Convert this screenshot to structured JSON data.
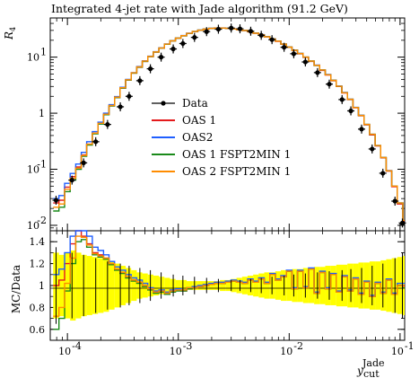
{
  "chart_data": {
    "type": "line",
    "title": "Integrated 4-jet rate with Jade algorithm (91.2 GeV)",
    "ylabel": "R_4",
    "xlabel": "y_cut^Jade",
    "xscale": "log",
    "yscale": "log",
    "xlim": [
      7e-05,
      0.11
    ],
    "ylim": [
      0.008,
      50
    ],
    "x_ticks": [
      {
        "value": 0.0001,
        "base": "10",
        "exp": "-4"
      },
      {
        "value": 0.001,
        "base": "10",
        "exp": "-3"
      },
      {
        "value": 0.01,
        "base": "10",
        "exp": "-2"
      },
      {
        "value": 0.1,
        "base": "10",
        "exp": "-1"
      }
    ],
    "y_ticks": [
      {
        "value": 0.01,
        "base": "10",
        "exp": "-2"
      },
      {
        "value": 0.1,
        "base": "10",
        "exp": "-1"
      },
      {
        "value": 1,
        "base": "1",
        "exp": ""
      },
      {
        "value": 10,
        "base": "10",
        "exp": "1"
      }
    ],
    "ratio": {
      "ylabel": "MC/Data",
      "ylim": [
        0.5,
        1.5
      ],
      "ticks": [
        "0.6",
        "0.8",
        "1",
        "1.2",
        "1.4"
      ]
    },
    "legend": {
      "position": "center-left"
    },
    "x": [
      7.9e-05,
      8.9e-05,
      0.0001,
      0.000112,
      0.000126,
      0.000141,
      0.000158,
      0.000178,
      0.0002,
      0.000224,
      0.000251,
      0.000282,
      0.000316,
      0.000355,
      0.000398,
      0.000447,
      0.000501,
      0.000562,
      0.000631,
      0.000708,
      0.000794,
      0.000891,
      0.001,
      0.001122,
      0.001259,
      0.001413,
      0.001585,
      0.001778,
      0.001995,
      0.002239,
      0.002512,
      0.002818,
      0.003162,
      0.003548,
      0.003981,
      0.004467,
      0.005012,
      0.005623,
      0.00631,
      0.007079,
      0.007943,
      0.008913,
      0.01,
      0.01122,
      0.01259,
      0.01413,
      0.01585,
      0.01778,
      0.01995,
      0.02239,
      0.02512,
      0.02818,
      0.03162,
      0.03548,
      0.03981,
      0.04467,
      0.05012,
      0.05623,
      0.0631,
      0.07079,
      0.07943,
      0.08913,
      0.1,
      0.1122
    ],
    "data": {
      "name": "Data",
      "x": [
        7.9e-05,
        0.00011,
        0.00014,
        0.00018,
        0.00023,
        0.0003,
        0.00036,
        0.00045,
        0.00056,
        0.0007,
        0.0009,
        0.0011,
        0.0014,
        0.0018,
        0.0023,
        0.003,
        0.0036,
        0.0045,
        0.0056,
        0.007,
        0.009,
        0.011,
        0.014,
        0.018,
        0.023,
        0.03,
        0.036,
        0.045,
        0.056,
        0.07,
        0.09,
        0.105
      ],
      "y": [
        0.028,
        0.064,
        0.13,
        0.31,
        0.63,
        1.3,
        2.0,
        3.8,
        6.2,
        10.0,
        14.0,
        17.5,
        22.5,
        28.5,
        31.5,
        33.0,
        32.0,
        29.0,
        24.5,
        20.5,
        15.0,
        11.5,
        8.2,
        5.3,
        3.3,
        1.75,
        1.1,
        0.52,
        0.23,
        0.085,
        0.027,
        0.011
      ]
    },
    "series": [
      {
        "name": "OAS 1",
        "color": "#e41a1c",
        "y": [
          0.025,
          0.028,
          0.048,
          0.074,
          0.11,
          0.18,
          0.28,
          0.44,
          0.65,
          0.95,
          1.35,
          1.9,
          2.8,
          3.9,
          5.2,
          6.6,
          8.4,
          10.2,
          12.3,
          14.5,
          17.0,
          19.5,
          21.8,
          24.0,
          26.5,
          28.5,
          30.2,
          31.5,
          32.5,
          33.0,
          33.0,
          32.5,
          31.8,
          31.0,
          29.8,
          28.3,
          26.7,
          25.0,
          23.0,
          21.0,
          19.2,
          17.0,
          15.0,
          13.2,
          11.5,
          9.9,
          8.4,
          7.1,
          5.8,
          4.8,
          3.8,
          3.0,
          2.3,
          1.75,
          1.25,
          0.9,
          0.62,
          0.41,
          0.26,
          0.16,
          0.093,
          0.049,
          0.024,
          0.012
        ]
      },
      {
        "name": "OAS2",
        "color": "#1f5fff",
        "y": [
          0.03,
          0.034,
          0.056,
          0.084,
          0.124,
          0.2,
          0.31,
          0.47,
          0.69,
          1.0,
          1.42,
          1.98,
          2.9,
          4.0,
          5.3,
          6.8,
          8.6,
          10.4,
          12.5,
          14.7,
          17.2,
          19.7,
          22.0,
          24.3,
          26.7,
          28.7,
          30.4,
          31.7,
          32.7,
          33.2,
          33.2,
          32.7,
          32.0,
          31.2,
          30.0,
          28.5,
          26.9,
          25.2,
          23.2,
          21.2,
          19.4,
          17.2,
          15.2,
          13.4,
          11.7,
          10.0,
          8.5,
          7.2,
          5.9,
          4.9,
          3.9,
          3.05,
          2.35,
          1.78,
          1.27,
          0.92,
          0.63,
          0.42,
          0.265,
          0.163,
          0.095,
          0.05,
          0.025,
          0.0125
        ]
      },
      {
        "name": "OAS 1 FSPT2MIN 1",
        "color": "#1a8a1a",
        "y": [
          0.018,
          0.021,
          0.04,
          0.064,
          0.1,
          0.17,
          0.27,
          0.43,
          0.64,
          0.94,
          1.34,
          1.9,
          2.8,
          3.9,
          5.2,
          6.6,
          8.4,
          10.2,
          12.3,
          14.5,
          17.0,
          19.5,
          21.8,
          24.0,
          26.5,
          28.6,
          30.3,
          31.6,
          32.6,
          33.1,
          33.1,
          32.6,
          31.9,
          31.1,
          29.9,
          28.4,
          26.8,
          25.1,
          23.1,
          21.1,
          19.3,
          17.1,
          15.1,
          13.3,
          11.6,
          10.0,
          8.5,
          7.1,
          5.9,
          4.85,
          3.85,
          3.02,
          2.32,
          1.77,
          1.26,
          0.91,
          0.63,
          0.42,
          0.265,
          0.162,
          0.094,
          0.05,
          0.025,
          0.0123
        ]
      },
      {
        "name": "OAS 2 FSPT2MIN 1",
        "color": "#ff8c00",
        "y": [
          0.021,
          0.024,
          0.044,
          0.069,
          0.105,
          0.176,
          0.28,
          0.44,
          0.66,
          0.96,
          1.37,
          1.93,
          2.85,
          3.95,
          5.25,
          6.7,
          8.5,
          10.3,
          12.4,
          14.6,
          17.1,
          19.6,
          21.9,
          24.2,
          26.6,
          28.6,
          30.3,
          31.6,
          32.6,
          33.1,
          33.1,
          32.6,
          31.9,
          31.1,
          29.9,
          28.4,
          26.8,
          25.1,
          23.1,
          21.1,
          19.3,
          17.1,
          15.1,
          13.3,
          11.6,
          10.0,
          8.5,
          7.15,
          5.9,
          4.85,
          3.85,
          3.02,
          2.32,
          1.77,
          1.26,
          0.91,
          0.63,
          0.42,
          0.265,
          0.162,
          0.094,
          0.05,
          0.025,
          0.0123
        ]
      }
    ],
    "ratio_series": [
      {
        "name": "OAS 1",
        "color": "#e41a1c",
        "y": [
          1.0,
          1.05,
          1.2,
          1.38,
          1.5,
          1.45,
          1.38,
          1.3,
          1.28,
          1.25,
          1.2,
          1.15,
          1.12,
          1.08,
          1.05,
          1.03,
          1.0,
          0.97,
          0.94,
          0.95,
          0.93,
          0.95,
          0.96,
          0.95,
          0.97,
          0.98,
          0.99,
          1.0,
          1.01,
          1.02,
          1.02,
          1.03,
          1.04,
          1.03,
          1.02,
          1.05,
          1.03,
          1.06,
          1.02,
          1.1,
          1.05,
          1.08,
          1.13,
          0.97,
          1.13,
          0.98,
          1.15,
          0.93,
          1.12,
          0.97,
          1.1,
          0.94,
          1.08,
          0.95,
          1.06,
          0.92,
          1.03,
          0.9,
          1.02,
          0.93,
          1.05,
          0.92,
          1.0,
          1.0
        ]
      },
      {
        "name": "OAS2",
        "color": "#1f5fff",
        "y": [
          1.1,
          1.15,
          1.3,
          1.45,
          1.55,
          1.5,
          1.45,
          1.35,
          1.32,
          1.28,
          1.22,
          1.17,
          1.14,
          1.1,
          1.07,
          1.05,
          1.02,
          0.98,
          0.95,
          0.96,
          0.94,
          0.96,
          0.97,
          0.96,
          0.98,
          0.99,
          1.0,
          1.01,
          1.02,
          1.03,
          1.03,
          1.04,
          1.05,
          1.04,
          1.03,
          1.06,
          1.04,
          1.07,
          1.03,
          1.11,
          1.06,
          1.09,
          1.14,
          0.98,
          1.14,
          0.99,
          1.16,
          0.94,
          1.13,
          0.98,
          1.11,
          0.95,
          1.09,
          0.96,
          1.07,
          0.93,
          1.04,
          0.91,
          1.03,
          0.94,
          1.06,
          0.93,
          1.02,
          1.02
        ]
      },
      {
        "name": "OAS 1 FSPT2MIN 1",
        "color": "#1a8a1a",
        "y": [
          0.6,
          0.7,
          0.95,
          1.2,
          1.4,
          1.42,
          1.35,
          1.28,
          1.26,
          1.24,
          1.19,
          1.14,
          1.11,
          1.07,
          1.04,
          1.02,
          0.99,
          0.96,
          0.93,
          0.94,
          0.92,
          0.94,
          0.95,
          0.95,
          0.97,
          0.98,
          0.99,
          1.0,
          1.01,
          1.02,
          1.02,
          1.03,
          1.04,
          1.03,
          1.02,
          1.05,
          1.03,
          1.06,
          1.02,
          1.1,
          1.05,
          1.08,
          1.13,
          0.97,
          1.13,
          0.98,
          1.15,
          0.93,
          1.12,
          0.97,
          1.1,
          0.94,
          1.08,
          0.95,
          1.06,
          0.92,
          1.03,
          0.9,
          1.02,
          0.93,
          1.05,
          0.92,
          1.0,
          0.98
        ]
      },
      {
        "name": "OAS 2 FSPT2MIN 1",
        "color": "#ff8c00",
        "y": [
          0.72,
          0.8,
          1.02,
          1.25,
          1.45,
          1.44,
          1.37,
          1.29,
          1.27,
          1.25,
          1.2,
          1.15,
          1.12,
          1.08,
          1.05,
          1.03,
          1.0,
          0.97,
          0.94,
          0.95,
          0.93,
          0.95,
          0.96,
          0.96,
          0.98,
          0.98,
          0.99,
          1.0,
          1.01,
          1.02,
          1.02,
          1.03,
          1.04,
          1.03,
          1.02,
          1.05,
          1.03,
          1.06,
          1.02,
          1.1,
          1.05,
          1.08,
          1.13,
          0.97,
          1.13,
          0.98,
          1.15,
          0.93,
          1.12,
          0.97,
          1.1,
          0.94,
          1.08,
          0.95,
          1.06,
          0.92,
          1.03,
          0.9,
          1.02,
          0.93,
          1.05,
          0.92,
          1.0,
          0.99
        ]
      }
    ],
    "ratio_band": [
      0.3,
      0.28,
      0.3,
      0.32,
      0.3,
      0.28,
      0.27,
      0.26,
      0.25,
      0.24,
      0.22,
      0.2,
      0.18,
      0.16,
      0.14,
      0.12,
      0.11,
      0.1,
      0.09,
      0.08,
      0.07,
      0.06,
      0.05,
      0.05,
      0.04,
      0.04,
      0.04,
      0.04,
      0.04,
      0.04,
      0.05,
      0.05,
      0.06,
      0.07,
      0.08,
      0.09,
      0.1,
      0.11,
      0.12,
      0.12,
      0.13,
      0.14,
      0.14,
      0.15,
      0.15,
      0.16,
      0.16,
      0.17,
      0.17,
      0.18,
      0.18,
      0.19,
      0.19,
      0.2,
      0.2,
      0.21,
      0.21,
      0.22,
      0.22,
      0.23,
      0.24,
      0.25,
      0.26,
      0.27
    ],
    "ratio_data_err": [
      0.35,
      0.3,
      0.28,
      0.25,
      0.22,
      0.2,
      0.18,
      0.16,
      0.14,
      0.12,
      0.1,
      0.09,
      0.08,
      0.07,
      0.06,
      0.05,
      0.05,
      0.06,
      0.07,
      0.08,
      0.09,
      0.1,
      0.11,
      0.12,
      0.13,
      0.14,
      0.15,
      0.16,
      0.18,
      0.2,
      0.25,
      0.3
    ]
  }
}
